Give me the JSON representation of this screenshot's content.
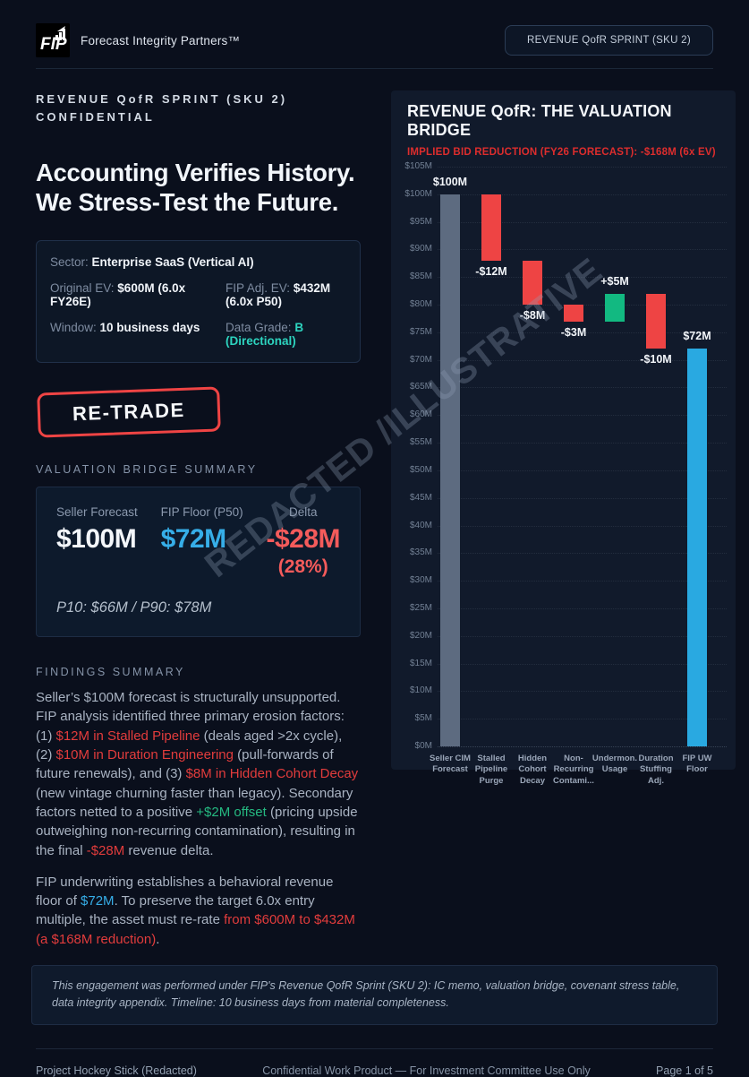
{
  "header": {
    "logo_text": "FIP",
    "brand": "Forecast Integrity Partners™",
    "pill_label": "REVENUE QofR SPRINT (SKU 2)"
  },
  "hero": {
    "eyebrow_line1": "REVENUE QofR SPRINT (SKU 2)",
    "eyebrow_line2": "CONFIDENTIAL",
    "title_line1": "Accounting Verifies History.",
    "title_line2": "We Stress-Test the Future."
  },
  "deal_facts": {
    "sector_label": "Sector:",
    "sector_value": "Enterprise SaaS (Vertical AI)",
    "original_ev_label": "Original EV:",
    "original_ev_value": "$600M (6.0x FY26E)",
    "fip_ev_label": "FIP Adj. EV:",
    "fip_ev_value": "$432M (6.0x P50)",
    "window_label": "Window:",
    "window_value": "10 business days",
    "grade_label": "Data Grade:",
    "grade_value": "B (Directional)"
  },
  "stamp_label": "RE-TRADE",
  "bridge_summary": {
    "section_label": "VALUATION BRIDGE SUMMARY",
    "cols": [
      {
        "label": "Seller Forecast",
        "value": "$100M",
        "color": "white"
      },
      {
        "label": "FIP Floor (P50)",
        "value": "$72M",
        "color": "blue"
      },
      {
        "label": "Delta",
        "value": "-$28M",
        "sub": "(28%)",
        "color": "red"
      }
    ],
    "percentiles": "P10: $66M  /  P90: $78M"
  },
  "findings": {
    "section_label": "FINDINGS SUMMARY",
    "p1_parts": [
      {
        "t": "Seller’s $100M forecast is structurally unsupported. FIP analysis identified three primary erosion factors: (1) ",
        "c": "base"
      },
      {
        "t": "$12M in Stalled Pipeline",
        "c": "red"
      },
      {
        "t": " (deals aged >2x cycle), (2) ",
        "c": "base"
      },
      {
        "t": "$10M in Duration Engineering",
        "c": "red"
      },
      {
        "t": " (pull-forwards of future renewals), and (3) ",
        "c": "base"
      },
      {
        "t": "$8M in Hidden Cohort Decay",
        "c": "red"
      },
      {
        "t": " (new vintage churning faster than legacy). Secondary factors netted to a positive ",
        "c": "base"
      },
      {
        "t": "+$2M offset",
        "c": "green"
      },
      {
        "t": " (pricing upside outweighing non-recurring contamination), resulting in the final ",
        "c": "base"
      },
      {
        "t": "-$28M",
        "c": "red"
      },
      {
        "t": " revenue delta.",
        "c": "base"
      }
    ],
    "p2_parts": [
      {
        "t": "FIP underwriting establishes a behavioral revenue floor of ",
        "c": "base"
      },
      {
        "t": "$72M",
        "c": "blue"
      },
      {
        "t": ". To preserve the target 6.0x entry multiple, the asset must re-rate ",
        "c": "base"
      },
      {
        "t": "from $600M to $432M (a $168M reduction)",
        "c": "red"
      },
      {
        "t": ".",
        "c": "base"
      }
    ]
  },
  "watermark_text": "REDACTED /ILLUSTRATIVE",
  "disclaimer_text": "This engagement was performed under FIP's Revenue QofR Sprint (SKU 2): IC memo, valuation bridge, covenant stress table, data integrity appendix. Timeline: 10 business days from material completeness.",
  "footer": {
    "left": "Project Hockey Stick (Redacted)",
    "center": "Confidential Work Product — For Investment Committee Use Only",
    "right": "Page 1 of 5"
  },
  "chart_data": {
    "type": "bar",
    "subtype": "waterfall",
    "title": "REVENUE QofR: THE VALUATION BRIDGE",
    "subtitle": "IMPLIED BID REDUCTION (FY26 FORECAST): -$168M (6x EV)",
    "ylabel": "",
    "xlabel": "",
    "ylim": [
      0,
      105
    ],
    "ytick_step": 5,
    "ytick_suffix": "M",
    "grid": "dotted-horizontal",
    "legend": "none",
    "colors": {
      "gray": "#5d6b80",
      "red": "#ee4444",
      "green": "#12b981",
      "blue": "#29a9e1"
    },
    "categories": [
      "Seller CIM Forecast",
      "Stalled Pipeline Purge",
      "Hidden Cohort Decay",
      "Non-Recurring Contami...",
      "Undermon. Usage",
      "Duration Stuffing Adj.",
      "FIP UW Floor"
    ],
    "bars": [
      {
        "name": "Seller CIM Forecast",
        "label_lines": [
          "Seller CIM",
          "Forecast"
        ],
        "start": 0,
        "end": 100,
        "delta": 100,
        "value_label": "$100M",
        "color_key": "gray",
        "label_pos": "above"
      },
      {
        "name": "Stalled Pipeline Purge",
        "label_lines": [
          "Stalled",
          "Pipeline",
          "Purge"
        ],
        "start": 100,
        "end": 88,
        "delta": -12,
        "value_label": "-$12M",
        "color_key": "red",
        "label_pos": "below"
      },
      {
        "name": "Hidden Cohort Decay",
        "label_lines": [
          "Hidden",
          "Cohort",
          "Decay"
        ],
        "start": 88,
        "end": 80,
        "delta": -8,
        "value_label": "-$8M",
        "color_key": "red",
        "label_pos": "below"
      },
      {
        "name": "Non-Recurring Contami...",
        "label_lines": [
          "Non-",
          "Recurring",
          "Contami..."
        ],
        "start": 80,
        "end": 77,
        "delta": -3,
        "value_label": "-$3M",
        "color_key": "red",
        "label_pos": "below"
      },
      {
        "name": "Undermon. Usage",
        "label_lines": [
          "Undermon.",
          "Usage"
        ],
        "start": 77,
        "end": 82,
        "delta": 5,
        "value_label": "+$5M",
        "color_key": "green",
        "label_pos": "above"
      },
      {
        "name": "Duration Stuffing Adj.",
        "label_lines": [
          "Duration",
          "Stuffing",
          "Adj."
        ],
        "start": 82,
        "end": 72,
        "delta": -10,
        "value_label": "-$10M",
        "color_key": "red",
        "label_pos": "below"
      },
      {
        "name": "FIP UW Floor",
        "label_lines": [
          "FIP UW",
          "Floor"
        ],
        "start": 0,
        "end": 72,
        "delta": 72,
        "value_label": "$72M",
        "color_key": "blue",
        "label_pos": "above"
      }
    ]
  }
}
